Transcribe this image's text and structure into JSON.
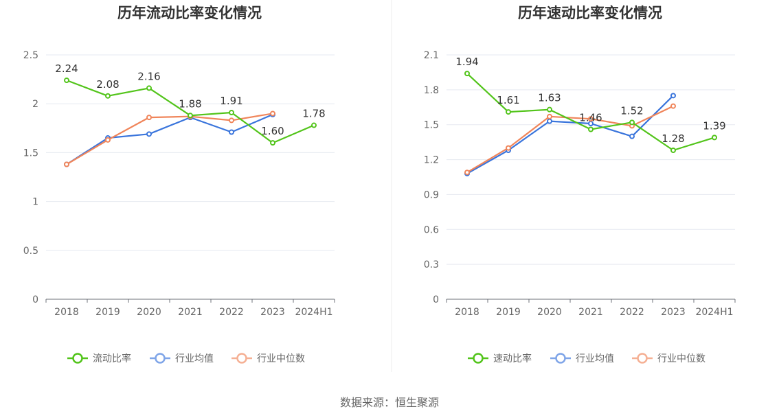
{
  "footer": {
    "source": "数据来源：恒生聚源"
  },
  "chart_data": [
    {
      "type": "line",
      "title": "历年流动比率变化情况",
      "categories": [
        "2018",
        "2019",
        "2020",
        "2021",
        "2022",
        "2023",
        "2024H1"
      ],
      "ylim": [
        0,
        2.5
      ],
      "yticks": [
        "0",
        "0.5",
        "1",
        "1.5",
        "2",
        "2.5"
      ],
      "grid": true,
      "legend_position": "bottom",
      "series": [
        {
          "name": "流动比率",
          "color": "#52c41a",
          "values": [
            2.24,
            2.08,
            2.16,
            1.88,
            1.91,
            1.6,
            1.78
          ],
          "labels": [
            "2.24",
            "2.08",
            "2.16",
            "1.88",
            "1.91",
            "1.60",
            "1.78"
          ]
        },
        {
          "name": "行业均值",
          "color": "#3a75dc",
          "values": [
            1.38,
            1.65,
            1.69,
            1.86,
            1.71,
            1.89,
            null
          ]
        },
        {
          "name": "行业中位数",
          "color": "#f0855a",
          "values": [
            1.38,
            1.63,
            1.86,
            1.87,
            1.83,
            1.9,
            null
          ]
        }
      ]
    },
    {
      "type": "line",
      "title": "历年速动比率变化情况",
      "categories": [
        "2018",
        "2019",
        "2020",
        "2021",
        "2022",
        "2023",
        "2024H1"
      ],
      "ylim": [
        0,
        2.1
      ],
      "yticks": [
        "0",
        "0.3",
        "0.6",
        "0.9",
        "1.2",
        "1.5",
        "1.8",
        "2.1"
      ],
      "grid": true,
      "legend_position": "bottom",
      "series": [
        {
          "name": "速动比率",
          "color": "#52c41a",
          "values": [
            1.94,
            1.61,
            1.63,
            1.46,
            1.52,
            1.28,
            1.39
          ],
          "labels": [
            "1.94",
            "1.61",
            "1.63",
            "1.46",
            "1.52",
            "1.28",
            "1.39"
          ]
        },
        {
          "name": "行业均值",
          "color": "#3a75dc",
          "values": [
            1.08,
            1.28,
            1.53,
            1.51,
            1.4,
            1.75,
            null
          ]
        },
        {
          "name": "行业中位数",
          "color": "#f0855a",
          "values": [
            1.09,
            1.3,
            1.57,
            1.55,
            1.49,
            1.66,
            null
          ]
        }
      ]
    }
  ]
}
